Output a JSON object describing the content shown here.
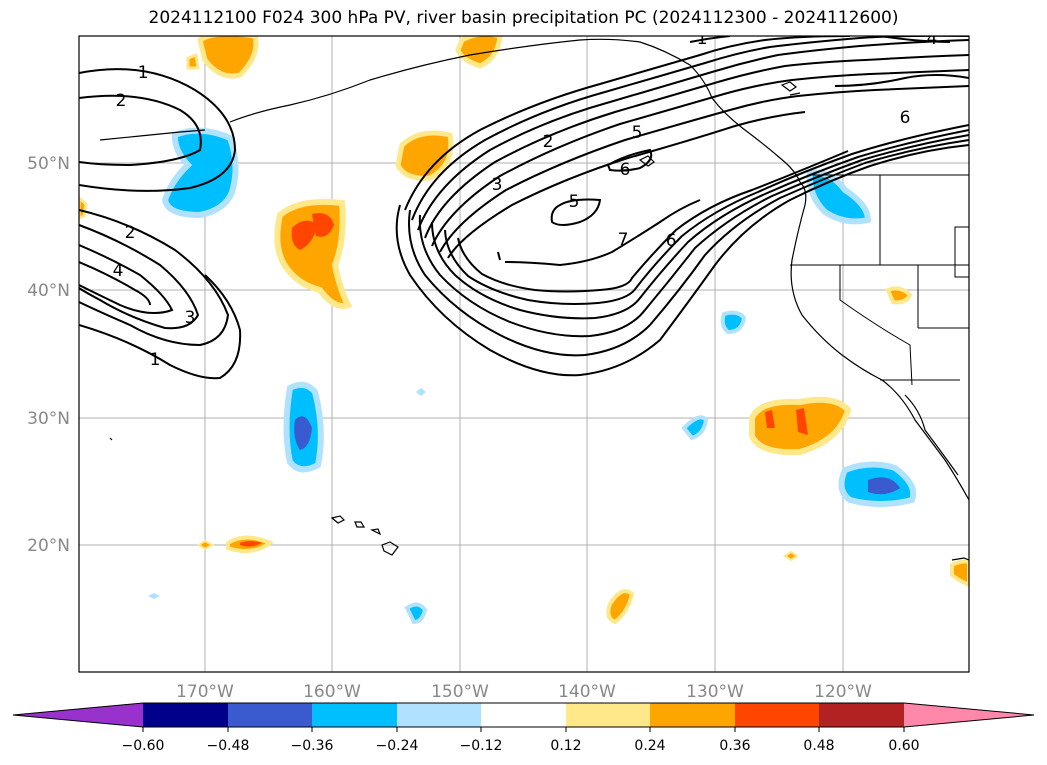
{
  "map": {
    "title": "2024112100 F024 300 hPa PV, river basin precipitation PC (2024112300 - 2024112600)",
    "lon_labels": [
      "170°W",
      "160°W",
      "150°W",
      "140°W",
      "130°W",
      "120°W"
    ],
    "lat_labels": [
      "50°N",
      "40°N",
      "30°N",
      "20°N"
    ],
    "contour_labels": [
      "1",
      "2",
      "2",
      "4",
      "3",
      "1",
      "2",
      "3",
      "5",
      "6",
      "5",
      "7",
      "6",
      "6",
      "1",
      "4"
    ],
    "colors": {
      "neg_extreme": "#9932cc",
      "neg_060": "#00008b",
      "neg_048": "#3a5bd0",
      "neg_036": "#00bfff",
      "neg_024": "#b0e2ff",
      "neutral": "#ffffff",
      "pos_012": "#ffe88a",
      "pos_024": "#ffa500",
      "pos_036": "#ff4500",
      "pos_048": "#b22222",
      "pos_extreme": "#ff88aa",
      "grid": "#b0b0b0",
      "tick_label": "#888888"
    }
  },
  "colorbar": {
    "tick_labels": [
      "−0.60",
      "−0.48",
      "−0.36",
      "−0.24",
      "−0.12",
      "0.12",
      "0.24",
      "0.36",
      "0.48",
      "0.60"
    ]
  }
}
